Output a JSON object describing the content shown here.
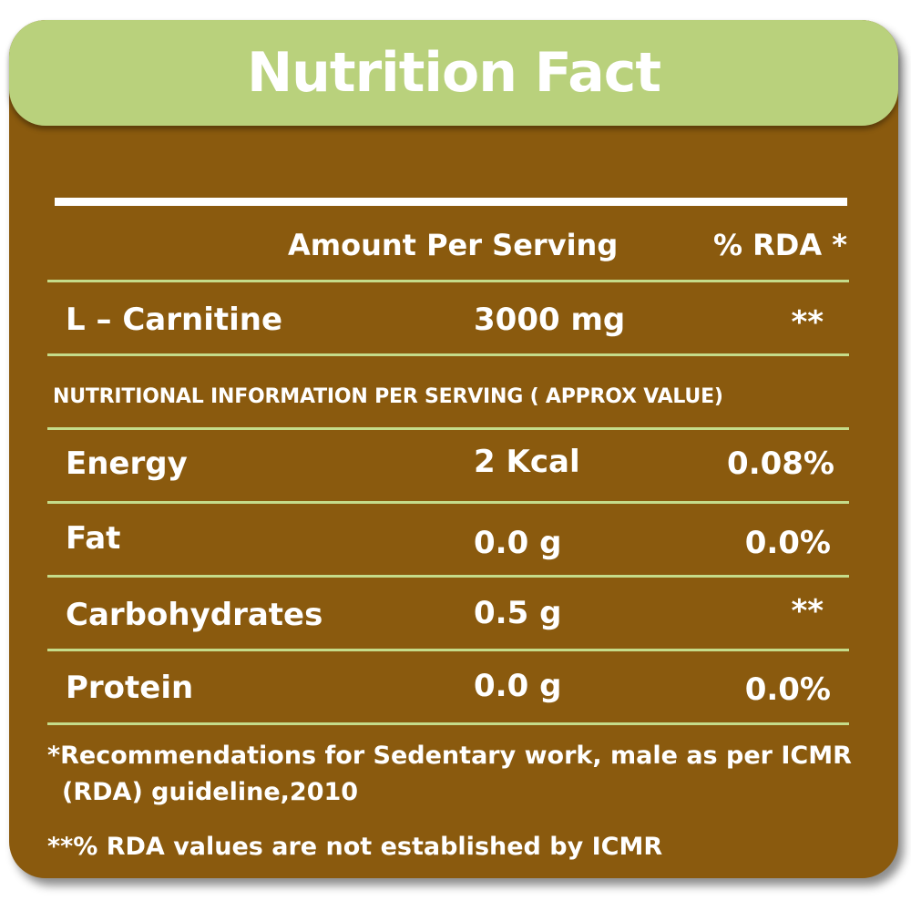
{
  "title": "Nutrition Fact",
  "header": {
    "amount_label": "Amount Per Serving",
    "rda_label": "% RDA *"
  },
  "primary": {
    "name": "L – Carnitine",
    "amount": "3000 mg",
    "rda": "**"
  },
  "info_heading": "NUTRITIONAL INFORMATION PER SERVING ( APPROX VALUE)",
  "rows": [
    {
      "name": "Energy",
      "amount": "2 Kcal",
      "rda": "0.08%"
    },
    {
      "name": "Fat",
      "amount": "0.0 g",
      "rda": "0.0%"
    },
    {
      "name": "Carbohydrates",
      "amount": "0.5 g",
      "rda": "**"
    },
    {
      "name": "Protein",
      "amount": "0.0 g",
      "rda": "0.0%"
    }
  ],
  "footnotes": {
    "line1": "*Recommendations for Sedentary work, male as per ICMR",
    "line2": "(RDA) guideline,2010",
    "line3": "**% RDA values are not established by ICMR"
  },
  "colors": {
    "background": "#8a5a0e",
    "header": "#b9d17c",
    "divider": "#c5dc8a",
    "text": "#ffffff"
  }
}
